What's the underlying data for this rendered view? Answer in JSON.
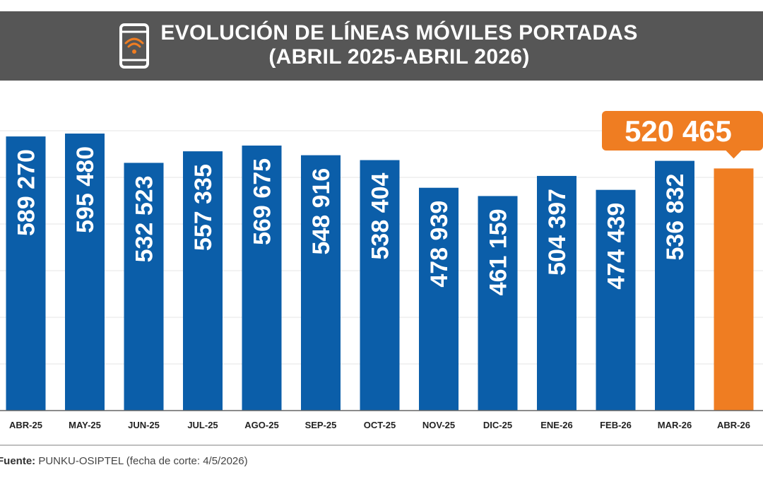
{
  "header": {
    "title_line1": "EVOLUCIÓN DE LÍNEAS MÓVILES PORTADAS",
    "title_line2": "(ABRIL 2025-ABRIL 2026)",
    "icon": "smartphone-wifi-icon"
  },
  "colors": {
    "header_bg": "#565656",
    "bar": "#0b5ea9",
    "highlight": "#ef7d22",
    "text_on_bar": "#ffffff",
    "grid": "#e4e4e4"
  },
  "chart_data": {
    "type": "bar",
    "title": "EVOLUCIÓN DE LÍNEAS MÓVILES PORTADAS (ABRIL 2025-ABRIL 2026)",
    "categories": [
      "ABR-25",
      "MAY-25",
      "JUN-25",
      "JUL-25",
      "AGO-25",
      "SEP-25",
      "OCT-25",
      "NOV-25",
      "DIC-25",
      "ENE-26",
      "FEB-26",
      "MAR-26",
      "ABR-26"
    ],
    "values": [
      589270,
      595480,
      532523,
      557335,
      569675,
      548916,
      538404,
      478939,
      461159,
      504397,
      474439,
      536832,
      520465
    ],
    "labels": [
      "589 270",
      "595 480",
      "532 523",
      "557 335",
      "569 675",
      "548 916",
      "538 404",
      "478 939",
      "461 159",
      "504 397",
      "474 439",
      "536 832",
      "520 465"
    ],
    "highlight_index": 12,
    "callout_label": "520 465",
    "ylim": [
      0,
      600000
    ],
    "grid": true
  },
  "footer": {
    "source_label": "Fuente:",
    "source_text": "PUNKU-OSIPTEL (fecha de corte: 4/5/2026)"
  }
}
